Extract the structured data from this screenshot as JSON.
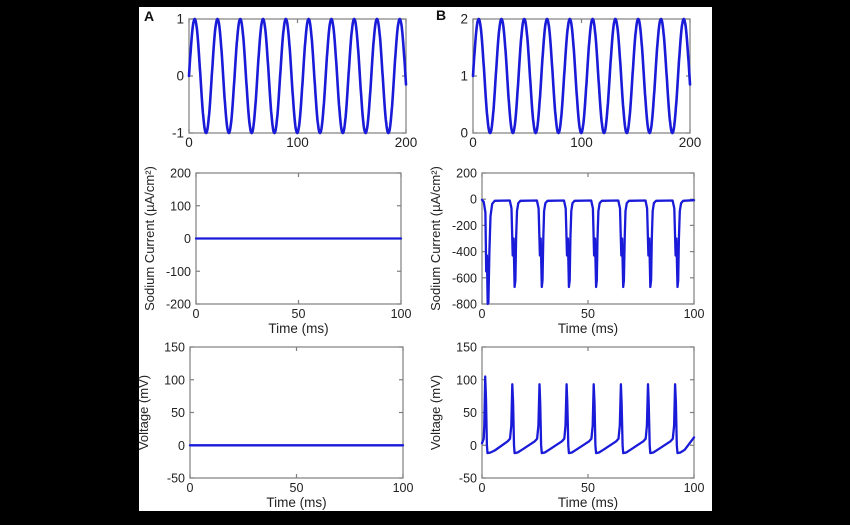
{
  "figure": {
    "panel_a_label": "A",
    "panel_b_label": "B",
    "background_color": "#000000",
    "figure_color": "#ffffff",
    "line_color": "#1a1ad9",
    "axis_color": "#7e7e7e",
    "text_color": "#222222"
  },
  "chart_data": [
    {
      "id": "a1",
      "panel": "A",
      "type": "line",
      "title": "",
      "xlabel": "",
      "ylabel": "",
      "xlim": [
        0,
        200
      ],
      "ylim": [
        -1,
        1
      ],
      "xticks": [
        0,
        100,
        200
      ],
      "yticks": [
        -1,
        0,
        1
      ],
      "grid": false,
      "legend": null,
      "description": "Sinusoidal stimulus, amplitude 1, ~10 cycles over 200 ms",
      "series": [
        {
          "name": "stimulus",
          "kind": "sine",
          "amplitude": 1,
          "offset": 0,
          "period_ms": 21,
          "phase_deg": 0,
          "x_range": [
            0,
            200
          ],
          "samples": 700
        }
      ]
    },
    {
      "id": "b1",
      "panel": "B",
      "type": "line",
      "title": "",
      "xlabel": "",
      "ylabel": "",
      "xlim": [
        0,
        200
      ],
      "ylim": [
        0,
        2
      ],
      "xticks": [
        0,
        100,
        200
      ],
      "yticks": [
        0,
        1,
        2
      ],
      "grid": false,
      "legend": null,
      "description": "Sinusoidal stimulus with +1 offset, 0 to 2, ~10 cycles over 200 ms",
      "series": [
        {
          "name": "stimulus",
          "kind": "sine",
          "amplitude": 1,
          "offset": 1,
          "period_ms": 21,
          "phase_deg": 0,
          "x_range": [
            0,
            200
          ],
          "samples": 700
        }
      ]
    },
    {
      "id": "a2",
      "panel": "A",
      "type": "line",
      "title": "",
      "xlabel": "Time (ms)",
      "ylabel": "Sodium Current (µA/cm²)",
      "xlim": [
        0,
        100
      ],
      "ylim": [
        -200,
        200
      ],
      "xticks": [
        0,
        50,
        100
      ],
      "yticks": [
        -200,
        -100,
        0,
        100,
        200
      ],
      "grid": false,
      "legend": null,
      "description": "Sodium current stays flat at 0 µA/cm² (no spiking)",
      "series": [
        {
          "name": "sodium-current",
          "kind": "constant",
          "value": 0,
          "x_range": [
            0,
            100
          ]
        }
      ]
    },
    {
      "id": "b2",
      "panel": "B",
      "type": "line",
      "title": "",
      "xlabel": "Time (ms)",
      "ylabel": "Sodium Current (µA/cm²)",
      "xlim": [
        0,
        100
      ],
      "ylim": [
        -800,
        200
      ],
      "xticks": [
        0,
        50,
        100
      ],
      "yticks": [
        -800,
        -600,
        -400,
        -200,
        0,
        200
      ],
      "grid": false,
      "legend": null,
      "description": "8 inward sodium current transients; first reaches -800, later ones ~-670 µA/cm², baseline ~-8",
      "series": [
        {
          "name": "sodium-current",
          "kind": "spike_train",
          "baseline": -8,
          "first_shape": [
            [
              0,
              -5
            ],
            [
              0.8,
              -20
            ],
            [
              1.6,
              -100
            ],
            [
              2.0,
              -550
            ],
            [
              2.3,
              -430
            ],
            [
              2.7,
              -800
            ],
            [
              3.0,
              -790
            ],
            [
              3.5,
              -400
            ],
            [
              4.0,
              -130
            ],
            [
              4.8,
              -35
            ],
            [
              6.0,
              -12
            ]
          ],
          "spike_times": [
            15.5,
            28.3,
            41.1,
            53.9,
            66.7,
            79.5,
            92.3
          ],
          "shape": [
            [
              -2.4,
              -10
            ],
            [
              -1.6,
              -70
            ],
            [
              -1.0,
              -430
            ],
            [
              -0.6,
              -300
            ],
            [
              -0.1,
              -670
            ],
            [
              0.25,
              -620
            ],
            [
              0.6,
              -300
            ],
            [
              1.0,
              -90
            ],
            [
              1.6,
              -30
            ],
            [
              2.6,
              -12
            ]
          ],
          "end": [
            100,
            -8
          ]
        }
      ]
    },
    {
      "id": "a3",
      "panel": "A",
      "type": "line",
      "title": "",
      "xlabel": "Time (ms)",
      "ylabel": "Voltage (mV)",
      "xlim": [
        0,
        100
      ],
      "ylim": [
        -50,
        150
      ],
      "xticks": [
        0,
        50,
        100
      ],
      "yticks": [
        -50,
        0,
        50,
        100,
        150
      ],
      "grid": false,
      "legend": null,
      "description": "Membrane voltage flat at 0 mV (no action potentials)",
      "series": [
        {
          "name": "voltage",
          "kind": "constant",
          "value": 0,
          "x_range": [
            0,
            100
          ]
        }
      ]
    },
    {
      "id": "b3",
      "panel": "B",
      "type": "line",
      "title": "",
      "xlabel": "Time (ms)",
      "ylabel": "Voltage (mV)",
      "xlim": [
        0,
        100
      ],
      "ylim": [
        -50,
        150
      ],
      "xticks": [
        0,
        50,
        100
      ],
      "yticks": [
        -50,
        0,
        50,
        100,
        150
      ],
      "grid": false,
      "legend": null,
      "description": "8 action potentials; first peak ~105 mV, later peaks ~93 mV, undershoot ~-12 mV with slow ramp between spikes",
      "series": [
        {
          "name": "voltage",
          "kind": "spike_train",
          "baseline": -10,
          "first_shape": [
            [
              0,
              3
            ],
            [
              0.8,
              10
            ],
            [
              1.1,
              30
            ],
            [
              1.5,
              105
            ],
            [
              1.9,
              70
            ],
            [
              2.3,
              0
            ],
            [
              2.6,
              -12
            ],
            [
              4.0,
              -11
            ],
            [
              6.0,
              -8
            ]
          ],
          "spike_times": [
            14.3,
            27.1,
            39.9,
            52.7,
            65.5,
            78.3,
            91.1
          ],
          "shape": [
            [
              -2.2,
              6
            ],
            [
              -1.1,
              10
            ],
            [
              -0.5,
              30
            ],
            [
              0,
              93
            ],
            [
              0.35,
              65
            ],
            [
              0.8,
              0
            ],
            [
              1.1,
              -12
            ],
            [
              2.5,
              -11
            ],
            [
              4.5,
              -7
            ]
          ],
          "end": [
            100,
            12
          ]
        }
      ]
    }
  ]
}
